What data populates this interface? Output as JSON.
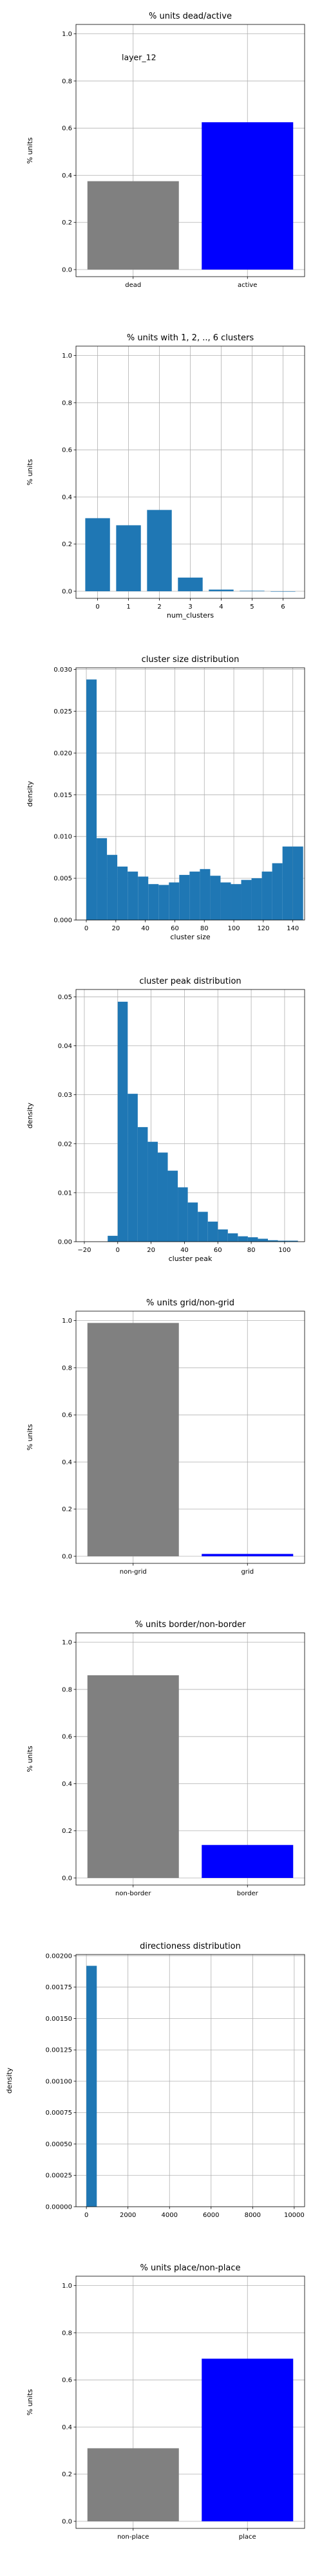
{
  "chart_data": [
    {
      "type": "bar",
      "title": "% units dead/active",
      "xlabel": "",
      "ylabel": "% units",
      "categories": [
        "dead",
        "active"
      ],
      "values": [
        0.375,
        0.625
      ],
      "colors": [
        "#808080",
        "#0000ff"
      ],
      "ylim": [
        -0.03,
        1.04
      ],
      "yticks": [
        0.0,
        0.2,
        0.4,
        0.6,
        0.8,
        1.0
      ],
      "ytick_labels": [
        "0.0",
        "0.2",
        "0.4",
        "0.6",
        "0.8",
        "1.0"
      ],
      "annotation": "layer_12",
      "grid": true
    },
    {
      "type": "bar",
      "title": "% units with 1, 2, .., 6 clusters",
      "xlabel": "num_clusters",
      "ylabel": "% units",
      "categories": [
        "0",
        "1",
        "2",
        "3",
        "4",
        "5",
        "6"
      ],
      "values": [
        0.31,
        0.28,
        0.345,
        0.058,
        0.007,
        0.002,
        0.0
      ],
      "colors": [
        "#1f77b4"
      ],
      "ylim": [
        -0.03,
        1.04
      ],
      "yticks": [
        0.0,
        0.2,
        0.4,
        0.6,
        0.8,
        1.0
      ],
      "ytick_labels": [
        "0.0",
        "0.2",
        "0.4",
        "0.6",
        "0.8",
        "1.0"
      ],
      "grid": true
    },
    {
      "type": "bar",
      "title": "cluster size distribution",
      "xlabel": "cluster size",
      "ylabel": "density",
      "bin_edges": [
        0,
        7,
        14,
        21,
        28,
        35,
        42,
        49,
        56,
        63,
        70,
        77,
        84,
        91,
        98,
        105,
        112,
        119,
        126,
        133,
        140,
        147
      ],
      "values": [
        0.0288,
        0.0098,
        0.0078,
        0.0064,
        0.0058,
        0.0052,
        0.0043,
        0.0042,
        0.0045,
        0.0054,
        0.0058,
        0.0061,
        0.0053,
        0.0045,
        0.0043,
        0.0048,
        0.005,
        0.0058,
        0.0068,
        0.0088,
        0.0088
      ],
      "colors": [
        "#1f77b4"
      ],
      "xlim": [
        -7,
        148
      ],
      "ylim": [
        0,
        0.0302
      ],
      "xticks": [
        0,
        20,
        40,
        60,
        80,
        100,
        120,
        140
      ],
      "xtick_labels": [
        "0",
        "20",
        "40",
        "60",
        "80",
        "100",
        "120",
        "140"
      ],
      "yticks": [
        0.0,
        0.005,
        0.01,
        0.015,
        0.02,
        0.025,
        0.03
      ],
      "ytick_labels": [
        "0.000",
        "0.005",
        "0.010",
        "0.015",
        "0.020",
        "0.025",
        "0.030"
      ],
      "grid": true
    },
    {
      "type": "bar",
      "title": "cluster peak distribution",
      "xlabel": "cluster peak",
      "ylabel": "density",
      "bin_edges": [
        -6,
        0,
        6,
        12,
        18,
        24,
        30,
        36,
        42,
        48,
        54,
        60,
        66,
        72,
        78,
        84,
        90,
        96,
        102,
        108
      ],
      "values": [
        0.0012,
        0.049,
        0.0302,
        0.0234,
        0.0204,
        0.0182,
        0.0145,
        0.0111,
        0.008,
        0.0061,
        0.0041,
        0.0025,
        0.0017,
        0.0011,
        0.0009,
        0.0006,
        0.0003,
        0.0002,
        0.0002
      ],
      "colors": [
        "#1f77b4"
      ],
      "xlim": [
        -25,
        112
      ],
      "ylim": [
        0,
        0.0515
      ],
      "xticks": [
        -20,
        0,
        20,
        40,
        60,
        80,
        100
      ],
      "xtick_labels": [
        "−20",
        "0",
        "20",
        "40",
        "60",
        "80",
        "100"
      ],
      "yticks": [
        0.0,
        0.01,
        0.02,
        0.03,
        0.04,
        0.05
      ],
      "ytick_labels": [
        "0.00",
        "0.01",
        "0.02",
        "0.03",
        "0.04",
        "0.05"
      ],
      "grid": true
    },
    {
      "type": "bar",
      "title": "% units grid/non-grid",
      "xlabel": "",
      "ylabel": "% units",
      "categories": [
        "non-grid",
        "grid"
      ],
      "values": [
        0.99,
        0.01
      ],
      "colors": [
        "#808080",
        "#0000ff"
      ],
      "ylim": [
        -0.03,
        1.04
      ],
      "yticks": [
        0.0,
        0.2,
        0.4,
        0.6,
        0.8,
        1.0
      ],
      "ytick_labels": [
        "0.0",
        "0.2",
        "0.4",
        "0.6",
        "0.8",
        "1.0"
      ],
      "grid": true
    },
    {
      "type": "bar",
      "title": "% units border/non-border",
      "xlabel": "",
      "ylabel": "% units",
      "categories": [
        "non-border",
        "border"
      ],
      "values": [
        0.86,
        0.14
      ],
      "colors": [
        "#808080",
        "#0000ff"
      ],
      "ylim": [
        -0.03,
        1.04
      ],
      "yticks": [
        0.0,
        0.2,
        0.4,
        0.6,
        0.8,
        1.0
      ],
      "ytick_labels": [
        "0.0",
        "0.2",
        "0.4",
        "0.6",
        "0.8",
        "1.0"
      ],
      "grid": true
    },
    {
      "type": "bar",
      "title": "directioness distribution",
      "xlabel": "",
      "ylabel": "density",
      "bin_edges": [
        0,
        500
      ],
      "values": [
        0.00192
      ],
      "colors": [
        "#1f77b4"
      ],
      "xlim": [
        -500,
        10500
      ],
      "ylim": [
        0,
        0.00201
      ],
      "xticks": [
        0,
        2000,
        4000,
        6000,
        8000,
        10000
      ],
      "xtick_labels": [
        "0",
        "2000",
        "4000",
        "6000",
        "8000",
        "10000"
      ],
      "yticks": [
        0.0,
        0.00025,
        0.0005,
        0.00075,
        0.001,
        0.00125,
        0.0015,
        0.00175,
        0.002
      ],
      "ytick_labels": [
        "0.00000",
        "0.00025",
        "0.00050",
        "0.00075",
        "0.00100",
        "0.00125",
        "0.00150",
        "0.00175",
        "0.00200"
      ],
      "grid": true
    },
    {
      "type": "bar",
      "title": "% units place/non-place",
      "xlabel": "",
      "ylabel": "% units",
      "categories": [
        "non-place",
        "place"
      ],
      "values": [
        0.31,
        0.69
      ],
      "colors": [
        "#808080",
        "#0000ff"
      ],
      "ylim": [
        -0.03,
        1.04
      ],
      "yticks": [
        0.0,
        0.2,
        0.4,
        0.6,
        0.8,
        1.0
      ],
      "ytick_labels": [
        "0.0",
        "0.2",
        "0.4",
        "0.6",
        "0.8",
        "1.0"
      ],
      "grid": true
    }
  ]
}
